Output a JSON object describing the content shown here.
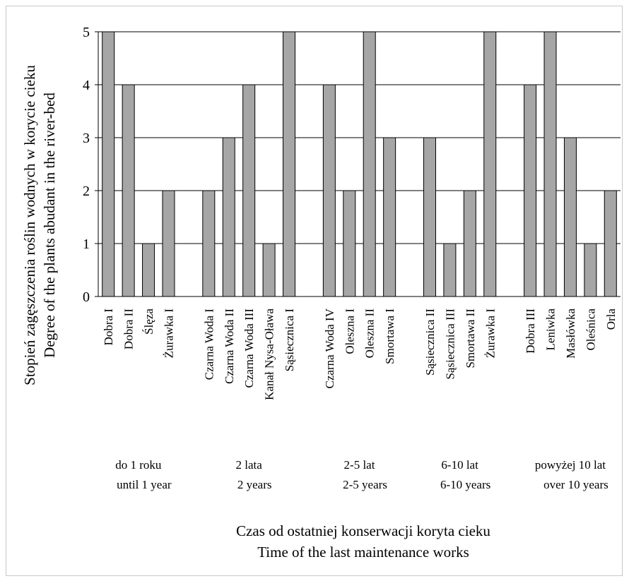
{
  "chart_data": {
    "type": "bar",
    "categories": [
      "Dobra I",
      "Dobra II",
      "Ślęza",
      "Żurawka I",
      "",
      "Czarna Woda I",
      "Czarna Woda II",
      "Czarna Woda III",
      "Kanał Nysa-Oława",
      "Sąsiecznica I",
      "",
      "Czarna Woda IV",
      "Oleszna I",
      "Oleszna II",
      "Smortawa I",
      "",
      "Sąsiecznica II",
      "Sąsiecznica III",
      "Smortawa II",
      "Żurawka I",
      "",
      "Dobra III",
      "Leniwka",
      "Masłówka",
      "Oleśnica",
      "Orla"
    ],
    "values": [
      5,
      4,
      1,
      2,
      null,
      2,
      3,
      4,
      1,
      5,
      null,
      4,
      2,
      5,
      3,
      null,
      3,
      1,
      2,
      5,
      null,
      4,
      5,
      3,
      1,
      2
    ],
    "ylim": [
      0,
      5
    ],
    "yticks": [
      0,
      1,
      2,
      3,
      4,
      5
    ],
    "ylabel": [
      "Stopień zagęszczenia roślin wodnych w korycie cieku",
      "Degree of the plants abudant in the river-bed"
    ],
    "xlabel": [
      "Czas od ostatniej konserwacji koryta cieku",
      "Time of the last maintenance works"
    ],
    "groups": [
      {
        "label_pl": "do 1 roku",
        "label_en": "until 1 year",
        "from": 0,
        "to": 3
      },
      {
        "label_pl": "2 lata",
        "label_en": "2 years",
        "from": 5,
        "to": 9
      },
      {
        "label_pl": "2-5 lat",
        "label_en": "2-5 years",
        "from": 11,
        "to": 14
      },
      {
        "label_pl": "6-10 lat",
        "label_en": "6-10 years",
        "from": 16,
        "to": 19
      },
      {
        "label_pl": "powyżej 10 lat",
        "label_en": "over 10 years",
        "from": 21,
        "to": 25
      }
    ],
    "grid": true,
    "legend": "none",
    "bar_color": "#a6a6a6"
  }
}
